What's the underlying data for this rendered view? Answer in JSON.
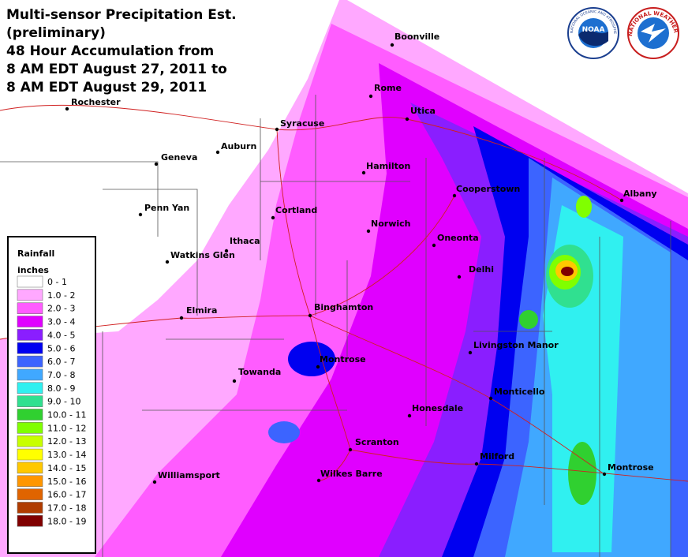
{
  "header": {
    "title": [
      "Multi-sensor Precipitation Est.",
      "(preliminary)",
      "48 Hour Accumulation from",
      "8 AM EDT August 27, 2011 to",
      "8 AM EDT August 29, 2011"
    ]
  },
  "logos": {
    "noaa": "NOAA",
    "noaa_ring": "NATIONAL OCEANIC AND ATMOSPHERIC ADMINISTRATION",
    "nws_ring": "NATIONAL WEATHER SERVICE"
  },
  "legend": {
    "title": "Rainfall",
    "units": "inches",
    "items": [
      {
        "label": "0 - 1",
        "color": "#ffffff"
      },
      {
        "label": "1.0 - 2",
        "color": "#ffa8ff"
      },
      {
        "label": "2.0 - 3",
        "color": "#ff5cff"
      },
      {
        "label": "3.0 - 4",
        "color": "#e000ff"
      },
      {
        "label": "4.0 - 5",
        "color": "#8a1eff"
      },
      {
        "label": "5.0 - 6",
        "color": "#0000f0"
      },
      {
        "label": "6.0 - 7",
        "color": "#3c64ff"
      },
      {
        "label": "7.0 - 8",
        "color": "#40a8ff"
      },
      {
        "label": "8.0 - 9",
        "color": "#30f0f0"
      },
      {
        "label": "9.0 - 10",
        "color": "#30e090"
      },
      {
        "label": "10.0 - 11",
        "color": "#30d030"
      },
      {
        "label": "11.0 - 12",
        "color": "#80ff00"
      },
      {
        "label": "12.0 - 13",
        "color": "#c8ff00"
      },
      {
        "label": "13.0 - 14",
        "color": "#ffff00"
      },
      {
        "label": "14.0 - 15",
        "color": "#ffc800"
      },
      {
        "label": "15.0 - 16",
        "color": "#ff9600"
      },
      {
        "label": "16.0 - 17",
        "color": "#e06400"
      },
      {
        "label": "17.0 - 18",
        "color": "#b03c00"
      },
      {
        "label": "18.0 - 19",
        "color": "#800000"
      }
    ]
  },
  "cities": [
    "Boonville",
    "Rome",
    "Utica",
    "Syracuse",
    "Rochester",
    "Auburn",
    "Geneva",
    "Hamilton",
    "Cooperstown",
    "Albany",
    "Penn Yan",
    "Cortland",
    "Norwich",
    "Oneonta",
    "Ithaca",
    "Watkins Glen",
    "Delhi",
    "Binghamton",
    "Elmira",
    "Livingston Manor",
    "Montrose",
    "Towanda",
    "Monticello",
    "Honesdale",
    "Scranton",
    "Milford",
    "Montrose",
    "Wilkes Barre",
    "Williamsport"
  ]
}
